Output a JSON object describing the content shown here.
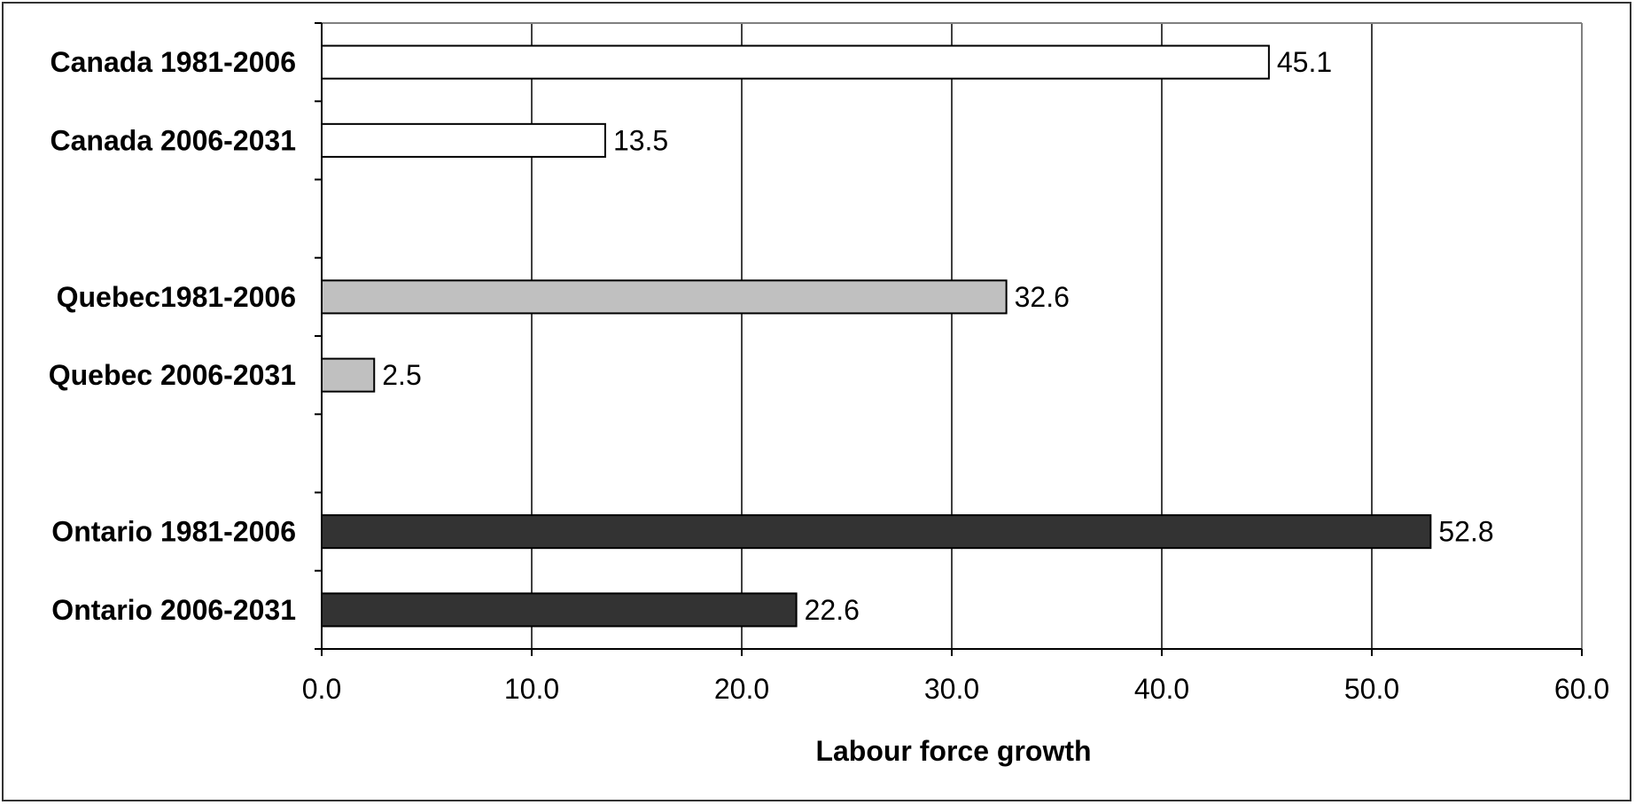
{
  "chart_data": {
    "type": "bar",
    "orientation": "horizontal",
    "title": "",
    "xlabel": "Labour force growth",
    "ylabel": "",
    "xlim": [
      0,
      60
    ],
    "x_ticks": [
      0,
      10,
      20,
      30,
      40,
      50,
      60
    ],
    "x_tick_labels": [
      "0.0",
      "10.0",
      "20.0",
      "30.0",
      "40.0",
      "50.0",
      "60.0"
    ],
    "grid": "vertical",
    "legend": "none",
    "categories": [
      "Canada 1981-2006",
      "Canada 2006-2031",
      "",
      "Quebec1981-2006",
      "Quebec 2006-2031",
      "",
      "Ontario 1981-2006",
      "Ontario 2006-2031"
    ],
    "values": [
      45.1,
      13.5,
      null,
      32.6,
      2.5,
      null,
      52.8,
      22.6
    ],
    "data_labels": [
      "45.1",
      "13.5",
      "",
      "32.6",
      "2.5",
      "",
      "52.8",
      "22.6"
    ],
    "bar_colors": [
      "#ffffff",
      "#ffffff",
      "",
      "#c0c0c0",
      "#c0c0c0",
      "",
      "#333333",
      "#333333"
    ]
  }
}
